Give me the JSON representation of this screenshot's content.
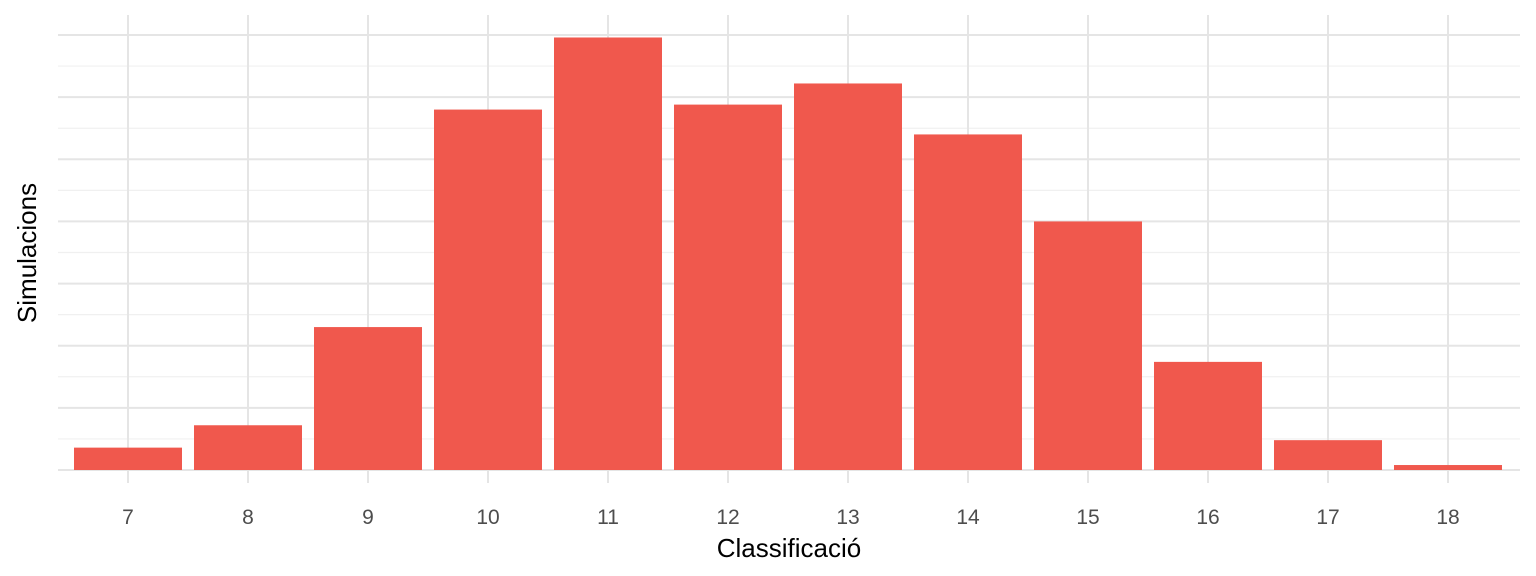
{
  "chart_data": {
    "type": "bar",
    "xlabel": "Classificació",
    "ylabel": "Simulacions",
    "categories": [
      "7",
      "8",
      "9",
      "10",
      "11",
      "12",
      "13",
      "14",
      "15",
      "16",
      "17",
      "18"
    ],
    "values": [
      18,
      36,
      115,
      290,
      348,
      294,
      311,
      270,
      200,
      87,
      24,
      4
    ],
    "ylim": [
      0,
      350
    ],
    "y_gridlines": [
      0,
      50,
      100,
      150,
      200,
      250,
      300,
      350
    ],
    "y_tick_labels_visible": false,
    "grid": true,
    "bar_color": "#F0584D",
    "grid_color": "#E5E5E5"
  }
}
